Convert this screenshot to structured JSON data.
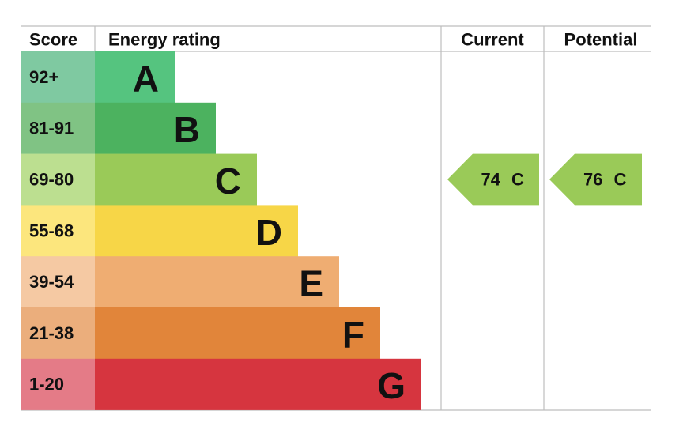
{
  "header": {
    "score": "Score",
    "rating": "Energy rating",
    "current": "Current",
    "potential": "Potential"
  },
  "bands": [
    {
      "score": "92+",
      "letter": "A",
      "color": "#55c47f",
      "score_color": "#7fc9a1"
    },
    {
      "score": "81-91",
      "letter": "B",
      "color": "#4cb25f",
      "score_color": "#80c384"
    },
    {
      "score": "69-80",
      "letter": "C",
      "color": "#9aca58",
      "score_color": "#bcdf90"
    },
    {
      "score": "55-68",
      "letter": "D",
      "color": "#f7d647",
      "score_color": "#fce67d"
    },
    {
      "score": "39-54",
      "letter": "E",
      "color": "#efad72",
      "score_color": "#f5c9a3"
    },
    {
      "score": "21-38",
      "letter": "F",
      "color": "#e1853a",
      "score_color": "#ebae7c"
    },
    {
      "score": "1-20",
      "letter": "G",
      "color": "#d6353f",
      "score_color": "#e47b87"
    }
  ],
  "current": {
    "score": 74,
    "band": "C"
  },
  "potential": {
    "score": 76,
    "band": "C"
  }
}
